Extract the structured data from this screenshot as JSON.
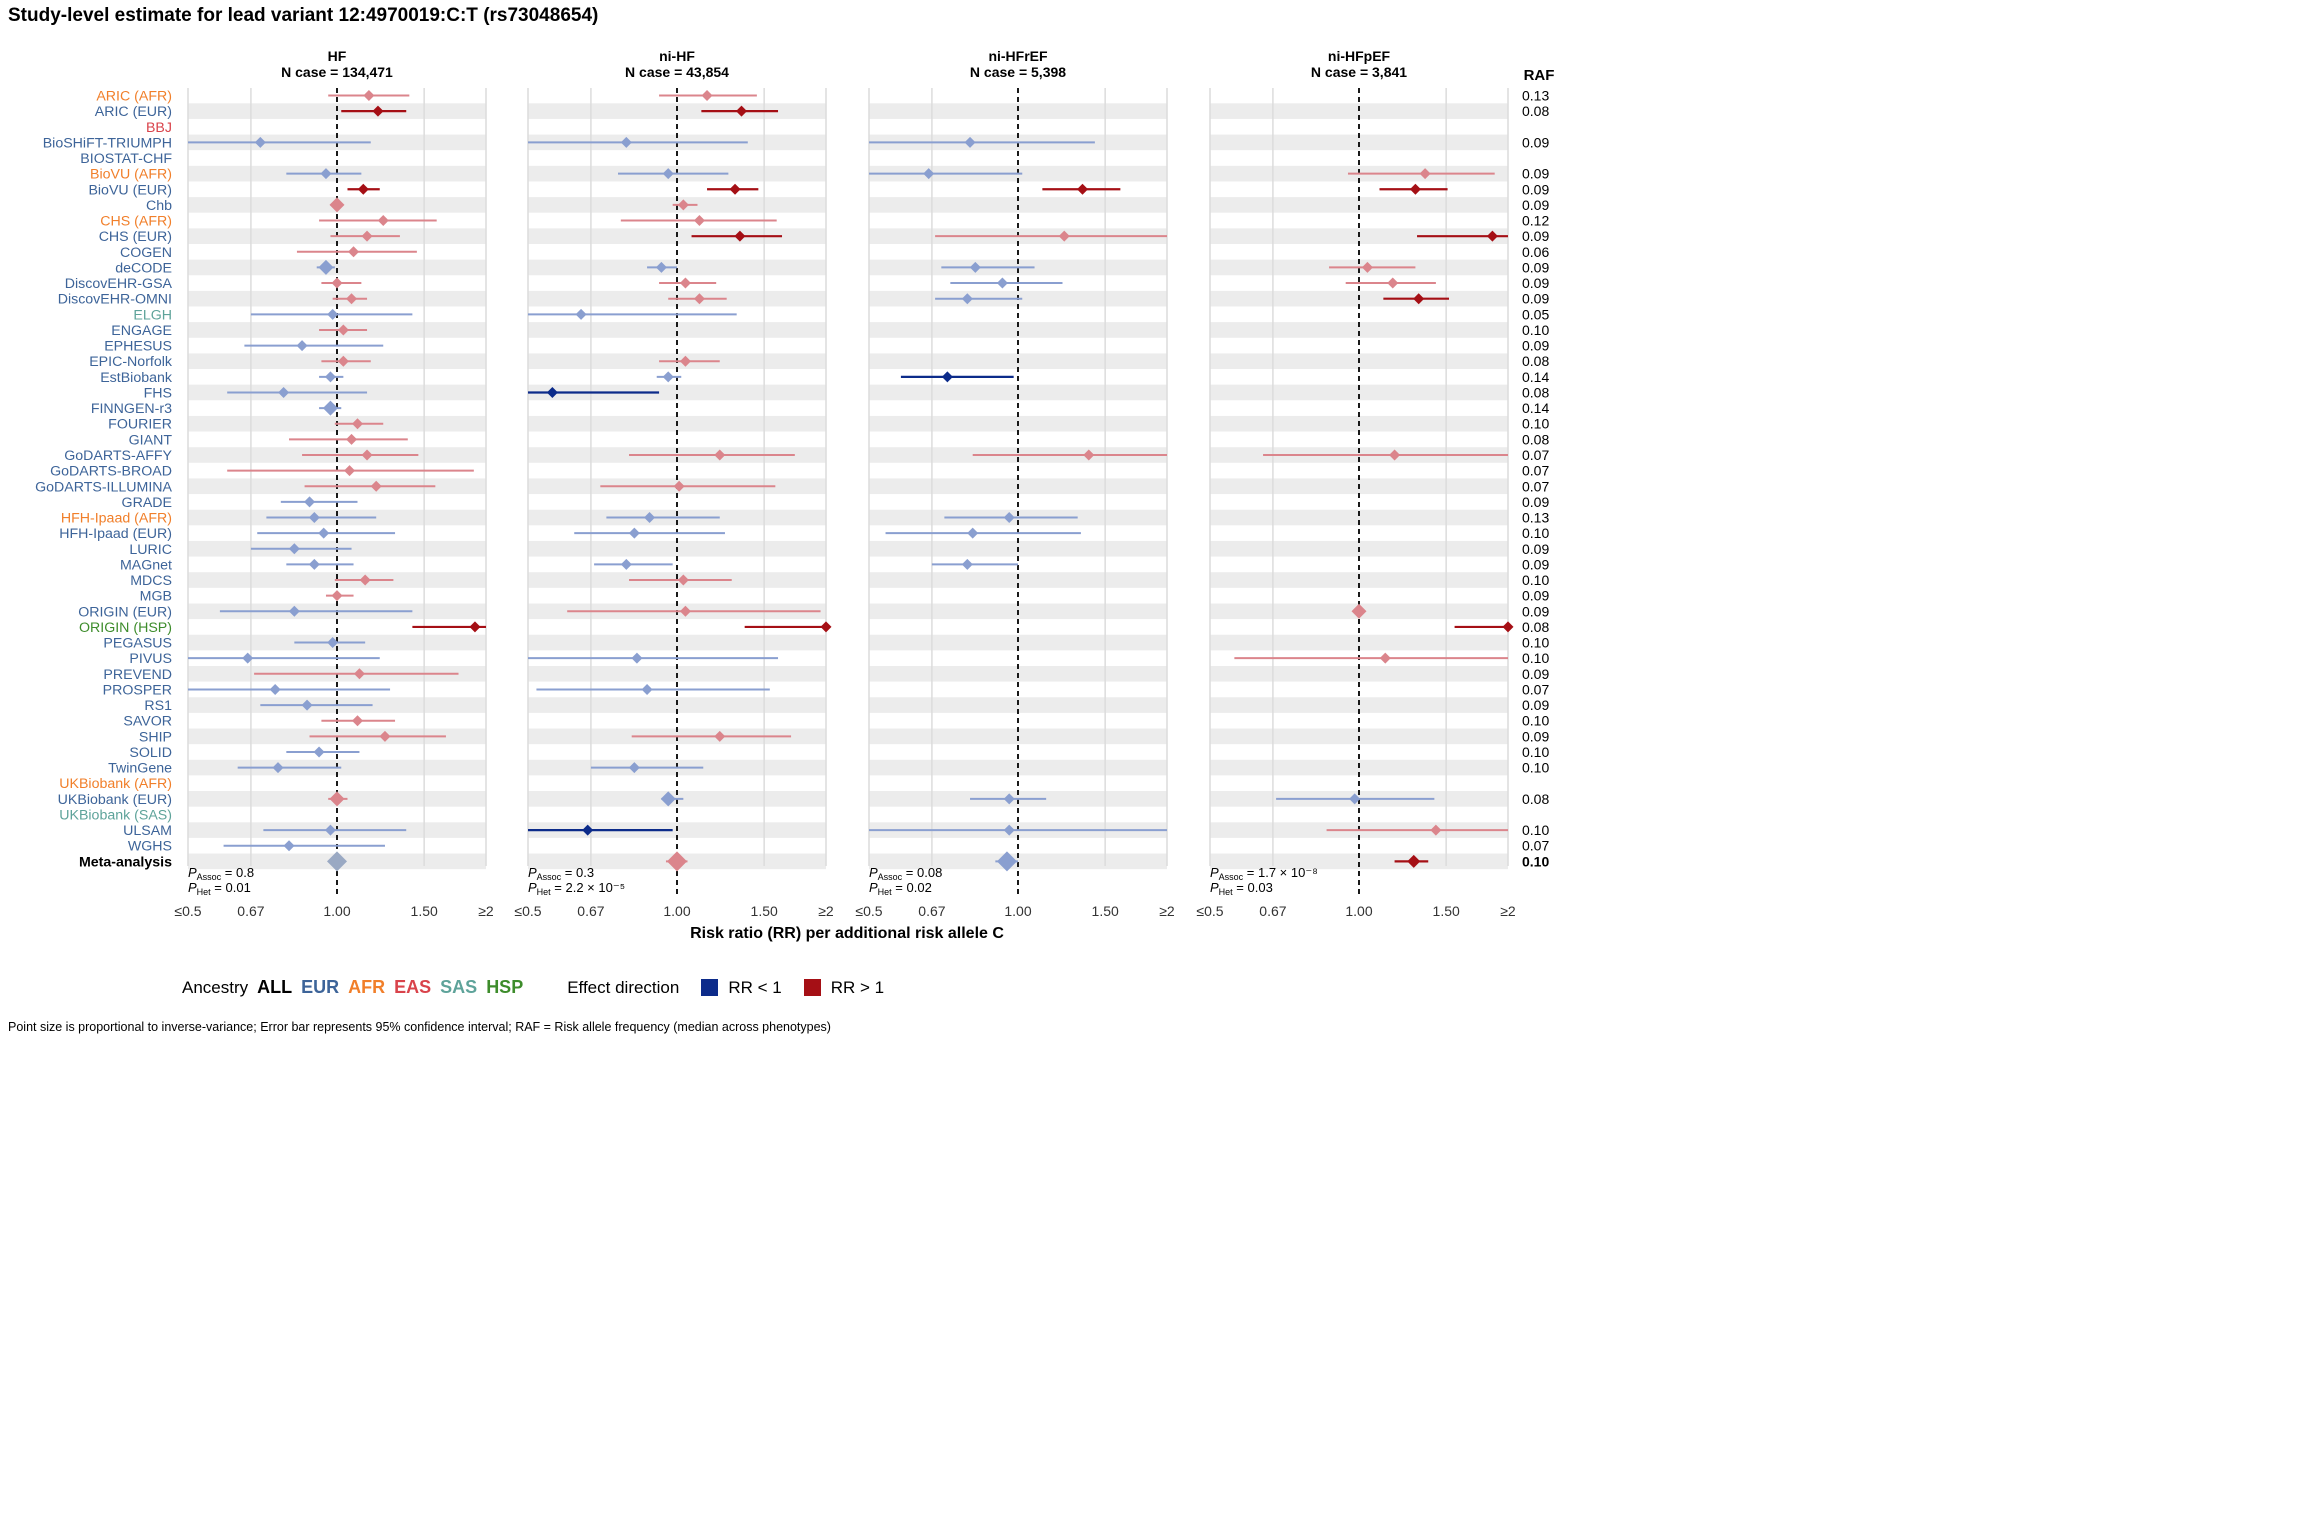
{
  "title": "Study-level estimate for lead variant 12:4970019:C:T (rs73048654)",
  "colors": {
    "EUR": "#3d6499",
    "AFR": "#f17f2a",
    "EAS": "#d9434b",
    "SAS": "#5ea39a",
    "HSP": "#3d8c2b",
    "rr_lt1": "#0c2b8a",
    "rr_gt1": "#a50f15",
    "lt1_light": "#8a9fd0",
    "gt1_light": "#db858c",
    "stripe": "#ececec",
    "meta_grey": "#9aa9c3"
  },
  "chart_data": {
    "type": "forest",
    "x_axis": {
      "label": "Risk ratio (RR) per additional risk allele C",
      "scale": "log",
      "ticks": [
        0.5,
        0.67,
        1.0,
        1.5,
        2.0
      ],
      "tick_labels": [
        "≤0.5",
        "0.67",
        "1.00",
        "1.50",
        "≥2"
      ],
      "range": [
        0.5,
        2.0
      ]
    },
    "raf_header": "RAF",
    "studies": [
      {
        "name": "ARIC (AFR)",
        "ancestry": "AFR",
        "raf": "0.13"
      },
      {
        "name": "ARIC (EUR)",
        "ancestry": "EUR",
        "raf": "0.08"
      },
      {
        "name": "BBJ",
        "ancestry": "EAS",
        "raf": ""
      },
      {
        "name": "BioSHiFT-TRIUMPH",
        "ancestry": "EUR",
        "raf": "0.09"
      },
      {
        "name": "BIOSTAT-CHF",
        "ancestry": "EUR",
        "raf": ""
      },
      {
        "name": "BioVU (AFR)",
        "ancestry": "AFR",
        "raf": "0.09"
      },
      {
        "name": "BioVU (EUR)",
        "ancestry": "EUR",
        "raf": "0.09"
      },
      {
        "name": "Chb",
        "ancestry": "EUR",
        "raf": "0.09"
      },
      {
        "name": "CHS (AFR)",
        "ancestry": "AFR",
        "raf": "0.12"
      },
      {
        "name": "CHS (EUR)",
        "ancestry": "EUR",
        "raf": "0.09"
      },
      {
        "name": "COGEN",
        "ancestry": "EUR",
        "raf": "0.06"
      },
      {
        "name": "deCODE",
        "ancestry": "EUR",
        "raf": "0.09"
      },
      {
        "name": "DiscovEHR-GSA",
        "ancestry": "EUR",
        "raf": "0.09"
      },
      {
        "name": "DiscovEHR-OMNI",
        "ancestry": "EUR",
        "raf": "0.09"
      },
      {
        "name": "ELGH",
        "ancestry": "SAS",
        "raf": "0.05"
      },
      {
        "name": "ENGAGE",
        "ancestry": "EUR",
        "raf": "0.10"
      },
      {
        "name": "EPHESUS",
        "ancestry": "EUR",
        "raf": "0.09"
      },
      {
        "name": "EPIC-Norfolk",
        "ancestry": "EUR",
        "raf": "0.08"
      },
      {
        "name": "EstBiobank",
        "ancestry": "EUR",
        "raf": "0.14"
      },
      {
        "name": "FHS",
        "ancestry": "EUR",
        "raf": "0.08"
      },
      {
        "name": "FINNGEN-r3",
        "ancestry": "EUR",
        "raf": "0.14"
      },
      {
        "name": "FOURIER",
        "ancestry": "EUR",
        "raf": "0.10"
      },
      {
        "name": "GIANT",
        "ancestry": "EUR",
        "raf": "0.08"
      },
      {
        "name": "GoDARTS-AFFY",
        "ancestry": "EUR",
        "raf": "0.07"
      },
      {
        "name": "GoDARTS-BROAD",
        "ancestry": "EUR",
        "raf": "0.07"
      },
      {
        "name": "GoDARTS-ILLUMINA",
        "ancestry": "EUR",
        "raf": "0.07"
      },
      {
        "name": "GRADE",
        "ancestry": "EUR",
        "raf": "0.09"
      },
      {
        "name": "HFH-Ipaad (AFR)",
        "ancestry": "AFR",
        "raf": "0.13"
      },
      {
        "name": "HFH-Ipaad (EUR)",
        "ancestry": "EUR",
        "raf": "0.10"
      },
      {
        "name": "LURIC",
        "ancestry": "EUR",
        "raf": "0.09"
      },
      {
        "name": "MAGnet",
        "ancestry": "EUR",
        "raf": "0.09"
      },
      {
        "name": "MDCS",
        "ancestry": "EUR",
        "raf": "0.10"
      },
      {
        "name": "MGB",
        "ancestry": "EUR",
        "raf": "0.09"
      },
      {
        "name": "ORIGIN (EUR)",
        "ancestry": "EUR",
        "raf": "0.09"
      },
      {
        "name": "ORIGIN (HSP)",
        "ancestry": "HSP",
        "raf": "0.08"
      },
      {
        "name": "PEGASUS",
        "ancestry": "EUR",
        "raf": "0.10"
      },
      {
        "name": "PIVUS",
        "ancestry": "EUR",
        "raf": "0.10"
      },
      {
        "name": "PREVEND",
        "ancestry": "EUR",
        "raf": "0.09"
      },
      {
        "name": "PROSPER",
        "ancestry": "EUR",
        "raf": "0.07"
      },
      {
        "name": "RS1",
        "ancestry": "EUR",
        "raf": "0.09"
      },
      {
        "name": "SAVOR",
        "ancestry": "EUR",
        "raf": "0.10"
      },
      {
        "name": "SHIP",
        "ancestry": "EUR",
        "raf": "0.09"
      },
      {
        "name": "SOLID",
        "ancestry": "EUR",
        "raf": "0.10"
      },
      {
        "name": "TwinGene",
        "ancestry": "EUR",
        "raf": "0.10"
      },
      {
        "name": "UKBiobank (AFR)",
        "ancestry": "AFR",
        "raf": ""
      },
      {
        "name": "UKBiobank (EUR)",
        "ancestry": "EUR",
        "raf": "0.08"
      },
      {
        "name": "UKBiobank (SAS)",
        "ancestry": "SAS",
        "raf": ""
      },
      {
        "name": "ULSAM",
        "ancestry": "EUR",
        "raf": "0.10"
      },
      {
        "name": "WGHS",
        "ancestry": "EUR",
        "raf": "0.07"
      },
      {
        "name": "Meta-analysis",
        "ancestry": "ALL",
        "raf": "0.10",
        "bold": true
      }
    ],
    "panels": [
      {
        "phenotype": "HF",
        "n_case_label": "N case = 134,471",
        "p_assoc": "0.8",
        "p_het": "0.01",
        "estimates": [
          [
            1.16,
            0.96,
            1.4,
            0
          ],
          [
            1.21,
            1.02,
            1.38,
            1
          ],
          null,
          [
            0.7,
            0.5,
            1.17,
            0
          ],
          null,
          [
            0.95,
            0.79,
            1.12,
            0
          ],
          [
            1.13,
            1.05,
            1.22,
            1
          ],
          [
            1.0,
            0.97,
            1.03,
            0
          ],
          [
            1.24,
            0.92,
            1.59,
            0
          ],
          [
            1.15,
            0.97,
            1.34,
            0
          ],
          [
            1.08,
            0.83,
            1.45,
            0
          ],
          [
            0.95,
            0.91,
            0.99,
            0
          ],
          [
            1.0,
            0.93,
            1.12,
            0
          ],
          [
            1.07,
            0.98,
            1.15,
            0
          ],
          [
            0.98,
            0.67,
            1.42,
            0
          ],
          [
            1.03,
            0.92,
            1.15,
            0
          ],
          [
            0.85,
            0.65,
            1.24,
            0
          ],
          [
            1.03,
            0.93,
            1.17,
            0
          ],
          [
            0.97,
            0.92,
            1.03,
            0
          ],
          [
            0.78,
            0.6,
            1.15,
            0
          ],
          [
            0.97,
            0.92,
            1.02,
            0
          ],
          [
            1.1,
            0.99,
            1.24,
            0
          ],
          [
            1.07,
            0.8,
            1.39,
            0
          ],
          [
            1.15,
            0.85,
            1.46,
            0
          ],
          [
            1.06,
            0.6,
            1.89,
            0
          ],
          [
            1.2,
            0.86,
            1.58,
            0
          ],
          [
            0.88,
            0.77,
            1.1,
            0
          ],
          [
            0.9,
            0.72,
            1.2,
            0
          ],
          [
            0.94,
            0.69,
            1.31,
            0
          ],
          [
            0.82,
            0.67,
            1.07,
            0
          ],
          [
            0.9,
            0.79,
            1.08,
            0
          ],
          [
            1.14,
            0.99,
            1.3,
            0
          ],
          [
            1.0,
            0.95,
            1.08,
            0
          ],
          [
            0.82,
            0.58,
            1.42,
            0
          ],
          [
            1.9,
            1.42,
            2.0,
            1
          ],
          [
            0.98,
            0.82,
            1.14,
            0
          ],
          [
            0.66,
            0.5,
            1.22,
            0
          ],
          [
            1.11,
            0.68,
            1.76,
            0
          ],
          [
            0.75,
            0.5,
            1.28,
            0
          ],
          [
            0.87,
            0.7,
            1.18,
            0
          ],
          [
            1.1,
            0.93,
            1.31,
            0
          ],
          [
            1.25,
            0.88,
            1.66,
            0
          ],
          [
            0.92,
            0.79,
            1.11,
            0
          ],
          [
            0.76,
            0.63,
            1.02,
            0
          ],
          null,
          [
            1.0,
            0.96,
            1.05,
            0
          ],
          null,
          [
            0.97,
            0.71,
            1.38,
            0
          ],
          [
            0.8,
            0.59,
            1.25,
            0
          ],
          [
            1.0,
            0.97,
            1.03,
            0
          ]
        ]
      },
      {
        "phenotype": "ni-HF",
        "n_case_label": "N case = 43,854",
        "p_assoc": "0.3",
        "p_het": "2.2 × 10⁻⁵",
        "estimates": [
          [
            1.15,
            0.92,
            1.45,
            0
          ],
          [
            1.35,
            1.12,
            1.6,
            1
          ],
          null,
          [
            0.79,
            0.5,
            1.39,
            0
          ],
          null,
          [
            0.96,
            0.76,
            1.27,
            0
          ],
          [
            1.31,
            1.15,
            1.46,
            1
          ],
          [
            1.03,
            0.98,
            1.1,
            0
          ],
          [
            1.11,
            0.77,
            1.59,
            0
          ],
          [
            1.34,
            1.07,
            1.63,
            1
          ],
          null,
          [
            0.93,
            0.87,
            1.0,
            0
          ],
          [
            1.04,
            0.92,
            1.2,
            0
          ],
          [
            1.11,
            0.96,
            1.26,
            0
          ],
          [
            0.64,
            0.5,
            1.32,
            0
          ],
          null,
          null,
          [
            1.04,
            0.92,
            1.22,
            0
          ],
          [
            0.96,
            0.91,
            1.02,
            0
          ],
          [
            0.56,
            0.5,
            0.92,
            -1
          ],
          null,
          null,
          null,
          [
            1.22,
            0.8,
            1.73,
            0
          ],
          null,
          [
            1.01,
            0.7,
            1.58,
            0
          ],
          null,
          [
            0.88,
            0.72,
            1.22,
            0
          ],
          [
            0.82,
            0.62,
            1.25,
            0
          ],
          null,
          [
            0.79,
            0.68,
            0.98,
            0
          ],
          [
            1.03,
            0.8,
            1.29,
            0
          ],
          null,
          [
            1.04,
            0.6,
            1.95,
            0
          ],
          [
            2.0,
            1.37,
            2.0,
            1
          ],
          null,
          [
            0.83,
            0.5,
            1.6,
            0
          ],
          null,
          [
            0.87,
            0.52,
            1.54,
            0
          ],
          null,
          null,
          [
            1.22,
            0.81,
            1.7,
            0
          ],
          null,
          [
            0.82,
            0.67,
            1.13,
            0
          ],
          null,
          [
            0.96,
            0.93,
            1.03,
            0
          ],
          null,
          [
            0.66,
            0.5,
            0.98,
            -1
          ],
          null,
          [
            1.0,
            0.95,
            1.05,
            0
          ]
        ]
      },
      {
        "phenotype": "ni-HFrEF",
        "n_case_label": "N case = 5,398",
        "p_assoc": "0.08",
        "p_het": "0.02",
        "estimates": [
          null,
          null,
          null,
          [
            0.8,
            0.5,
            1.43,
            0
          ],
          null,
          [
            0.66,
            0.5,
            1.02,
            0
          ],
          [
            1.35,
            1.12,
            1.61,
            1
          ],
          null,
          null,
          [
            1.24,
            0.68,
            2.0,
            0
          ],
          null,
          [
            0.82,
            0.7,
            1.08,
            0
          ],
          [
            0.93,
            0.73,
            1.23,
            0
          ],
          [
            0.79,
            0.68,
            1.02,
            0
          ],
          null,
          null,
          null,
          null,
          [
            0.72,
            0.58,
            0.98,
            -1
          ],
          null,
          null,
          null,
          null,
          [
            1.39,
            0.81,
            2.0,
            0
          ],
          null,
          null,
          null,
          [
            0.96,
            0.71,
            1.32,
            0
          ],
          [
            0.81,
            0.54,
            1.34,
            0
          ],
          null,
          [
            0.79,
            0.67,
            1.0,
            0
          ],
          null,
          null,
          null,
          null,
          null,
          null,
          null,
          null,
          null,
          null,
          null,
          null,
          null,
          null,
          [
            0.96,
            0.8,
            1.14,
            0
          ],
          null,
          [
            0.96,
            0.5,
            2.0,
            0
          ],
          null,
          [
            0.95,
            0.9,
            1.0,
            0
          ]
        ]
      },
      {
        "phenotype": "ni-HFpEF",
        "n_case_label": "N case = 3,841",
        "p_assoc": "1.7 × 10⁻⁸",
        "p_het": "0.03",
        "estimates": [
          null,
          null,
          null,
          null,
          null,
          [
            1.36,
            0.95,
            1.88,
            0
          ],
          [
            1.3,
            1.1,
            1.51,
            1
          ],
          null,
          null,
          [
            1.86,
            1.31,
            2.0,
            1
          ],
          null,
          [
            1.04,
            0.87,
            1.3,
            0
          ],
          [
            1.17,
            0.94,
            1.43,
            0
          ],
          [
            1.32,
            1.12,
            1.52,
            1
          ],
          null,
          null,
          null,
          null,
          null,
          null,
          null,
          null,
          null,
          [
            1.18,
            0.64,
            2.0,
            0
          ],
          null,
          null,
          null,
          null,
          null,
          null,
          null,
          null,
          null,
          [
            1.0,
            0.98,
            1.02,
            0
          ],
          [
            2.0,
            1.56,
            2.0,
            1
          ],
          null,
          [
            1.13,
            0.56,
            2.0,
            0
          ],
          null,
          null,
          null,
          null,
          null,
          null,
          null,
          null,
          [
            0.98,
            0.68,
            1.42,
            0
          ],
          null,
          [
            1.43,
            0.86,
            2.0,
            0
          ],
          null,
          [
            1.29,
            1.18,
            1.38,
            1
          ]
        ]
      }
    ]
  },
  "legend": {
    "ancestry_title": "Ancestry",
    "ancestry_items": [
      "ALL",
      "EUR",
      "AFR",
      "EAS",
      "SAS",
      "HSP"
    ],
    "effect_title": "Effect direction",
    "rr_lt1_label": "RR < 1",
    "rr_gt1_label": "RR > 1"
  },
  "footnote": "Point size is proportional to inverse-variance; Error bar represents 95% confidence interval; RAF = Risk allele frequency (median across phenotypes)"
}
